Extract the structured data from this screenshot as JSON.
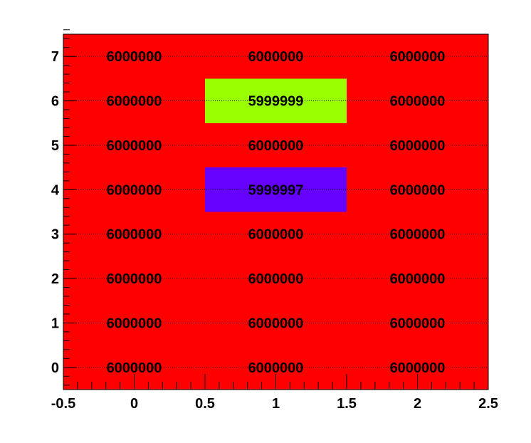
{
  "chart_data": {
    "type": "heatmap",
    "title": "",
    "xlabel": "",
    "ylabel": "",
    "x": [
      0,
      1,
      2
    ],
    "y": [
      0,
      1,
      2,
      3,
      4,
      5,
      6,
      7
    ],
    "xlim": [
      -0.5,
      2.5
    ],
    "ylim": [
      -0.5,
      7.5
    ],
    "x_ticks": [
      -0.5,
      0,
      0.5,
      1,
      1.5,
      2,
      2.5
    ],
    "x_tick_labels": [
      "-0.5",
      "0",
      "0.5",
      "1",
      "1.5",
      "2",
      "2.5"
    ],
    "y_ticks": [
      0,
      1,
      2,
      3,
      4,
      5,
      6,
      7
    ],
    "y_tick_labels": [
      "0",
      "1",
      "2",
      "3",
      "4",
      "5",
      "6",
      "7"
    ],
    "grid": true,
    "cells": [
      {
        "x": 0,
        "y": 0,
        "value": 6000000,
        "label": "6000000",
        "color": "#ff0000"
      },
      {
        "x": 1,
        "y": 0,
        "value": 6000000,
        "label": "6000000",
        "color": "#ff0000"
      },
      {
        "x": 2,
        "y": 0,
        "value": 6000000,
        "label": "6000000",
        "color": "#ff0000"
      },
      {
        "x": 0,
        "y": 1,
        "value": 6000000,
        "label": "6000000",
        "color": "#ff0000"
      },
      {
        "x": 1,
        "y": 1,
        "value": 6000000,
        "label": "6000000",
        "color": "#ff0000"
      },
      {
        "x": 2,
        "y": 1,
        "value": 6000000,
        "label": "6000000",
        "color": "#ff0000"
      },
      {
        "x": 0,
        "y": 2,
        "value": 6000000,
        "label": "6000000",
        "color": "#ff0000"
      },
      {
        "x": 1,
        "y": 2,
        "value": 6000000,
        "label": "6000000",
        "color": "#ff0000"
      },
      {
        "x": 2,
        "y": 2,
        "value": 6000000,
        "label": "6000000",
        "color": "#ff0000"
      },
      {
        "x": 0,
        "y": 3,
        "value": 6000000,
        "label": "6000000",
        "color": "#ff0000"
      },
      {
        "x": 1,
        "y": 3,
        "value": 6000000,
        "label": "6000000",
        "color": "#ff0000"
      },
      {
        "x": 2,
        "y": 3,
        "value": 6000000,
        "label": "6000000",
        "color": "#ff0000"
      },
      {
        "x": 0,
        "y": 4,
        "value": 6000000,
        "label": "6000000",
        "color": "#ff0000"
      },
      {
        "x": 1,
        "y": 4,
        "value": 5999997,
        "label": "5999997",
        "color": "#6600ff"
      },
      {
        "x": 2,
        "y": 4,
        "value": 6000000,
        "label": "6000000",
        "color": "#ff0000"
      },
      {
        "x": 0,
        "y": 5,
        "value": 6000000,
        "label": "6000000",
        "color": "#ff0000"
      },
      {
        "x": 1,
        "y": 5,
        "value": 6000000,
        "label": "6000000",
        "color": "#ff0000"
      },
      {
        "x": 2,
        "y": 5,
        "value": 6000000,
        "label": "6000000",
        "color": "#ff0000"
      },
      {
        "x": 0,
        "y": 6,
        "value": 6000000,
        "label": "6000000",
        "color": "#ff0000"
      },
      {
        "x": 1,
        "y": 6,
        "value": 5999999,
        "label": "5999999",
        "color": "#99ff00"
      },
      {
        "x": 2,
        "y": 6,
        "value": 6000000,
        "label": "6000000",
        "color": "#ff0000"
      },
      {
        "x": 0,
        "y": 7,
        "value": 6000000,
        "label": "6000000",
        "color": "#ff0000"
      },
      {
        "x": 1,
        "y": 7,
        "value": 6000000,
        "label": "6000000",
        "color": "#ff0000"
      },
      {
        "x": 2,
        "y": 7,
        "value": 6000000,
        "label": "6000000",
        "color": "#ff0000"
      }
    ]
  }
}
